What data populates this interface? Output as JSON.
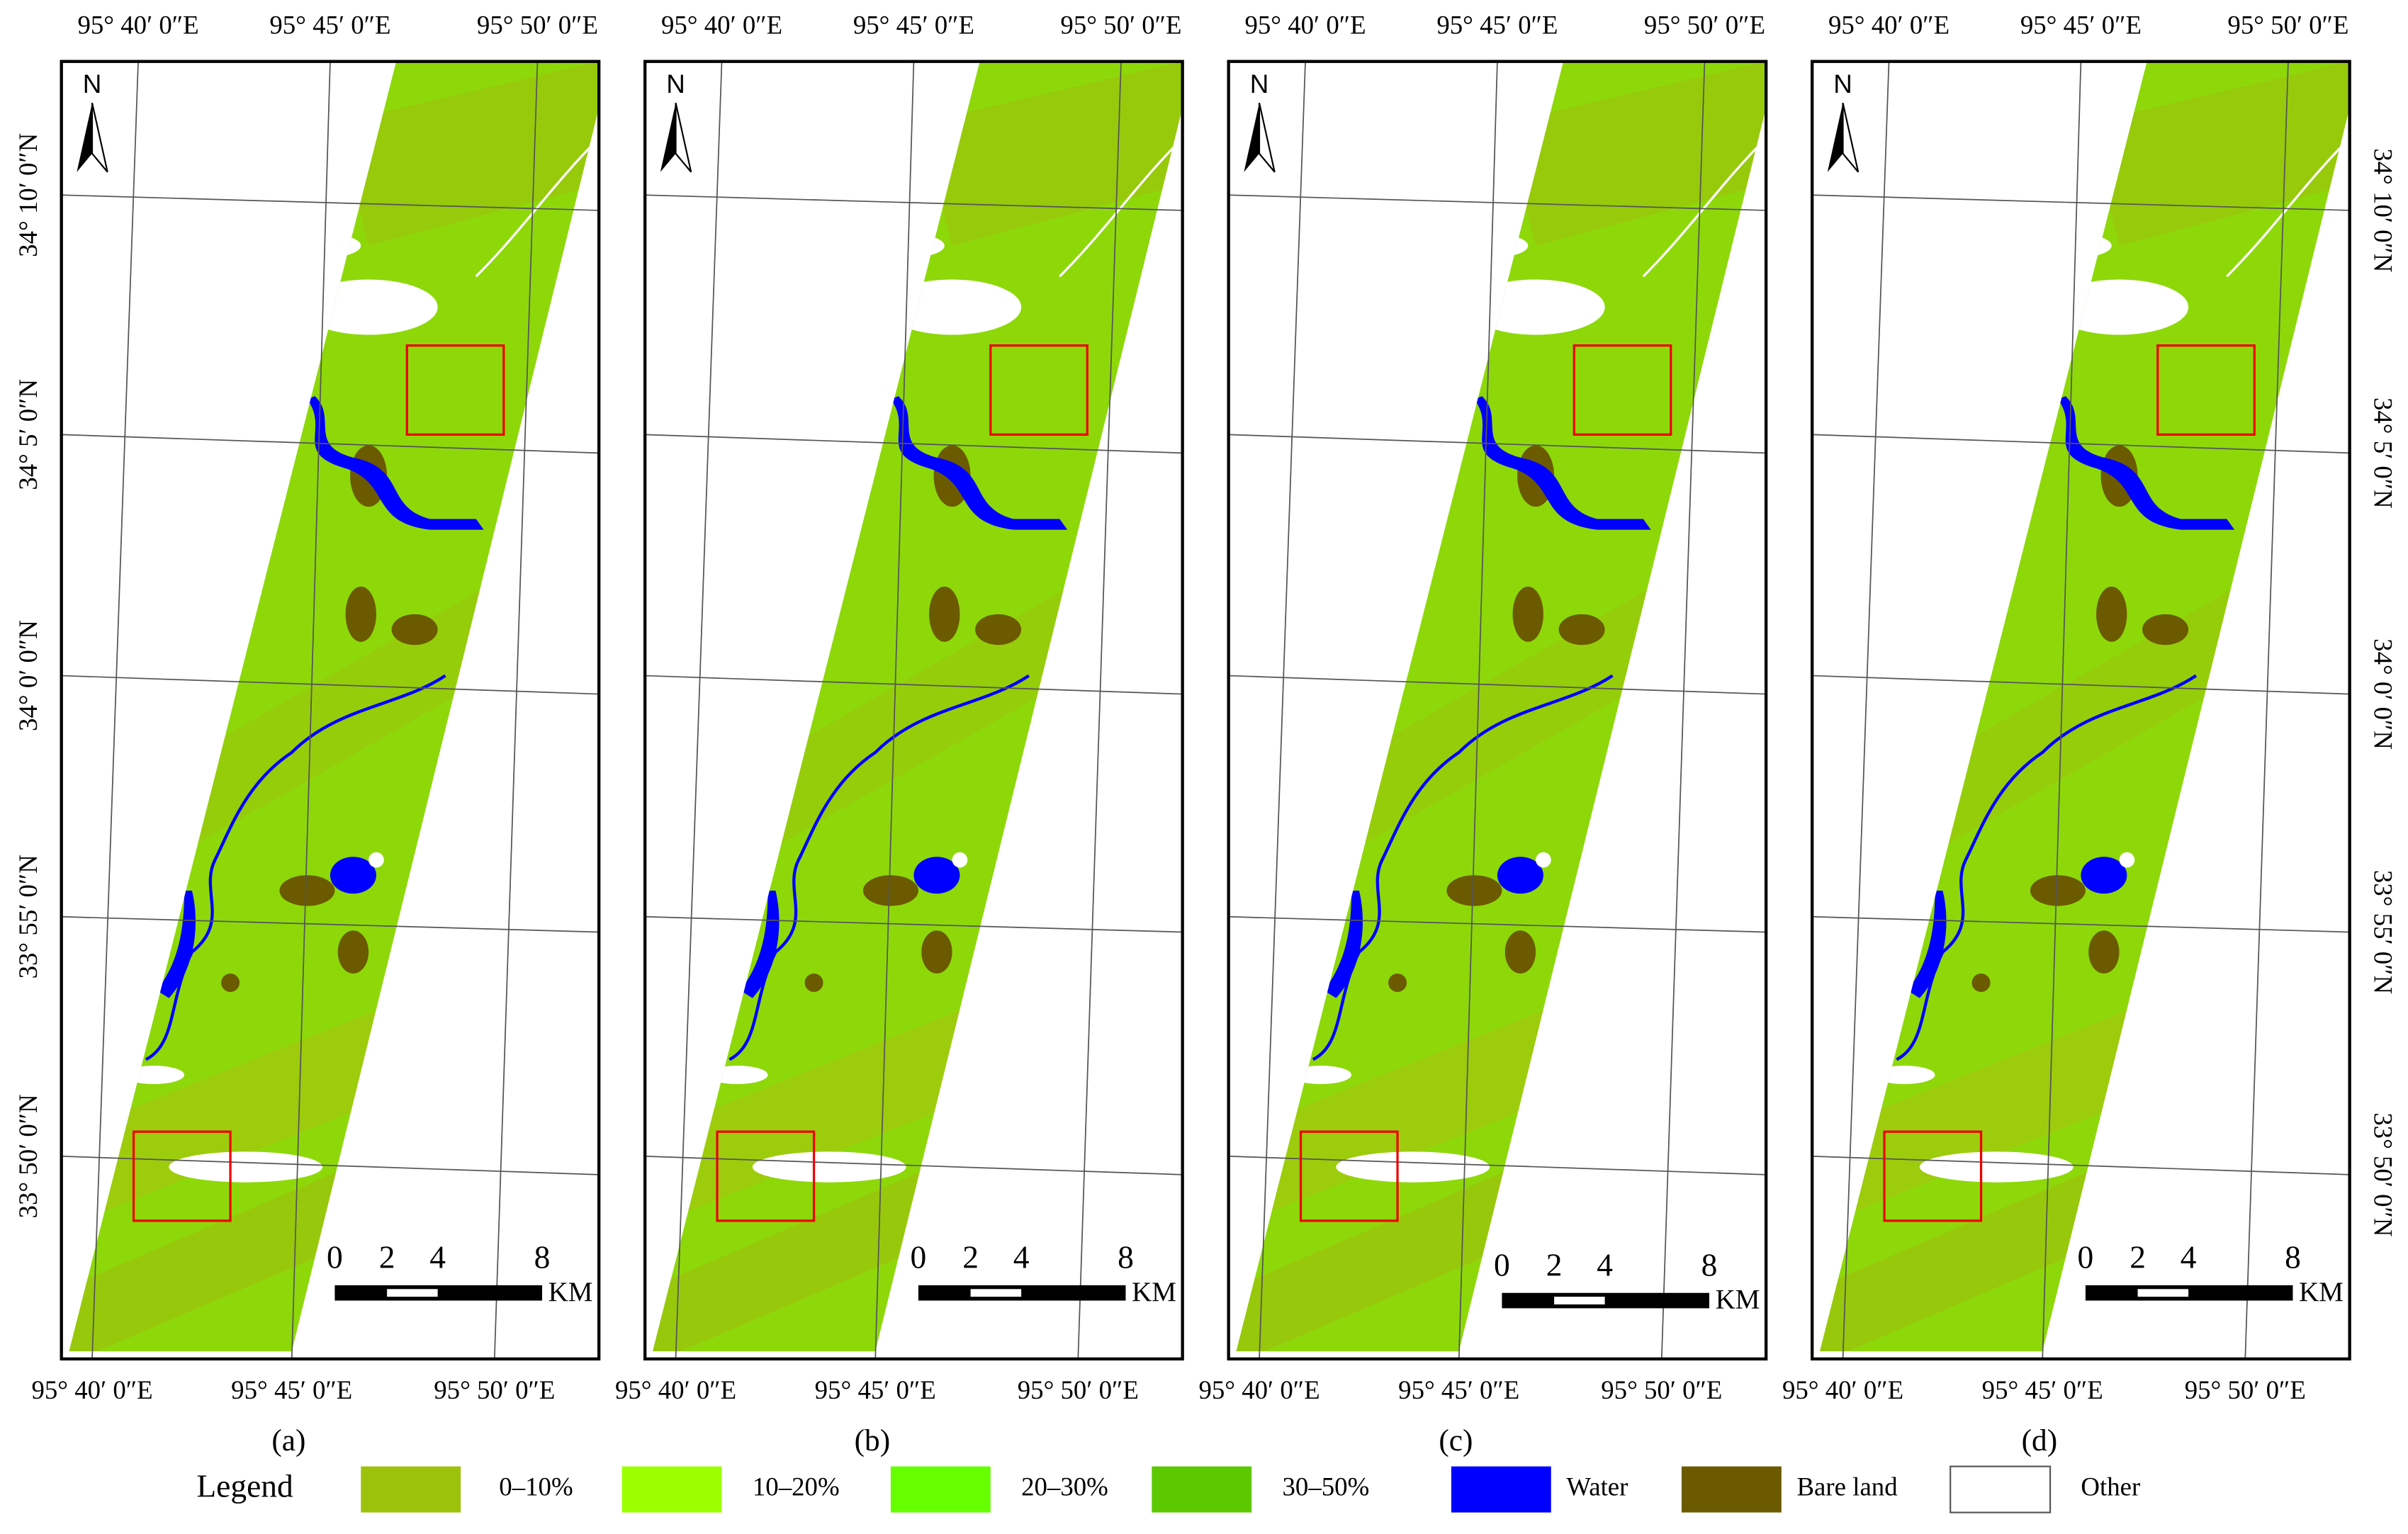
{
  "longitudes": [
    "95° 40′ 0″E",
    "95° 45′ 0″E",
    "95° 50′ 0″E"
  ],
  "latitudes": [
    "34° 10′ 0″N",
    "34° 5′ 0″N",
    "34° 0′ 0″N",
    "33° 55′ 0″N",
    "33° 50′ 0″N"
  ],
  "north_label": "N",
  "scale_bar": {
    "ticks": [
      "0",
      "2",
      "4",
      "8"
    ],
    "unit": "KM"
  },
  "panels": [
    {
      "caption": "(a)"
    },
    {
      "caption": "(b)"
    },
    {
      "caption": "(c)"
    },
    {
      "caption": "(d)"
    }
  ],
  "legend": {
    "title": "Legend",
    "items": [
      {
        "label": "0–10%",
        "color": "#9dc20c"
      },
      {
        "label": "10–20%",
        "color": "#9cff00"
      },
      {
        "label": "20–30%",
        "color": "#66ff00"
      },
      {
        "label": "30–50%",
        "color": "#5cc800"
      },
      {
        "label": "Water",
        "color": "#0000ff"
      },
      {
        "label": "Bare land",
        "color": "#6b5a00"
      },
      {
        "label": "Other",
        "color": "#ffffff"
      }
    ]
  }
}
